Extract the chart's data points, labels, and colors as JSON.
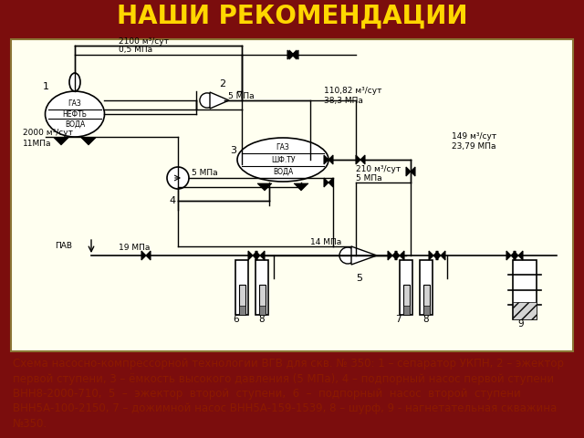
{
  "background_color": "#7B0D0D",
  "title": "НАШИ РЕКОМЕНДАЦИИ",
  "title_color": "#FFD700",
  "title_fontsize": 20,
  "content_bg": "#FFFFF0",
  "content_border_color": "#B8860B",
  "caption_lines": [
    "Схема насосно-компрессорной технологии ВГВ для скв. № 350: 1 – сепаратор УКПН, 2 – эжектор",
    "первой ступени, 3 – ёмкость высокого давления (5 МПа), 4 – подпорный насос первой ступени",
    "ВНН8-2000-710,  5  –  эжектор  второй  ступени,  6  –  подпорный  насос  второй  ступени",
    "ВНН5А-100-2150, 7 – дожимной насос ВНН5А-159-1539, 8 – шурф, 9 - нагнетательная скважина",
    "№350."
  ],
  "caption_color": "#8B1A00",
  "caption_fontsize": 8.5
}
